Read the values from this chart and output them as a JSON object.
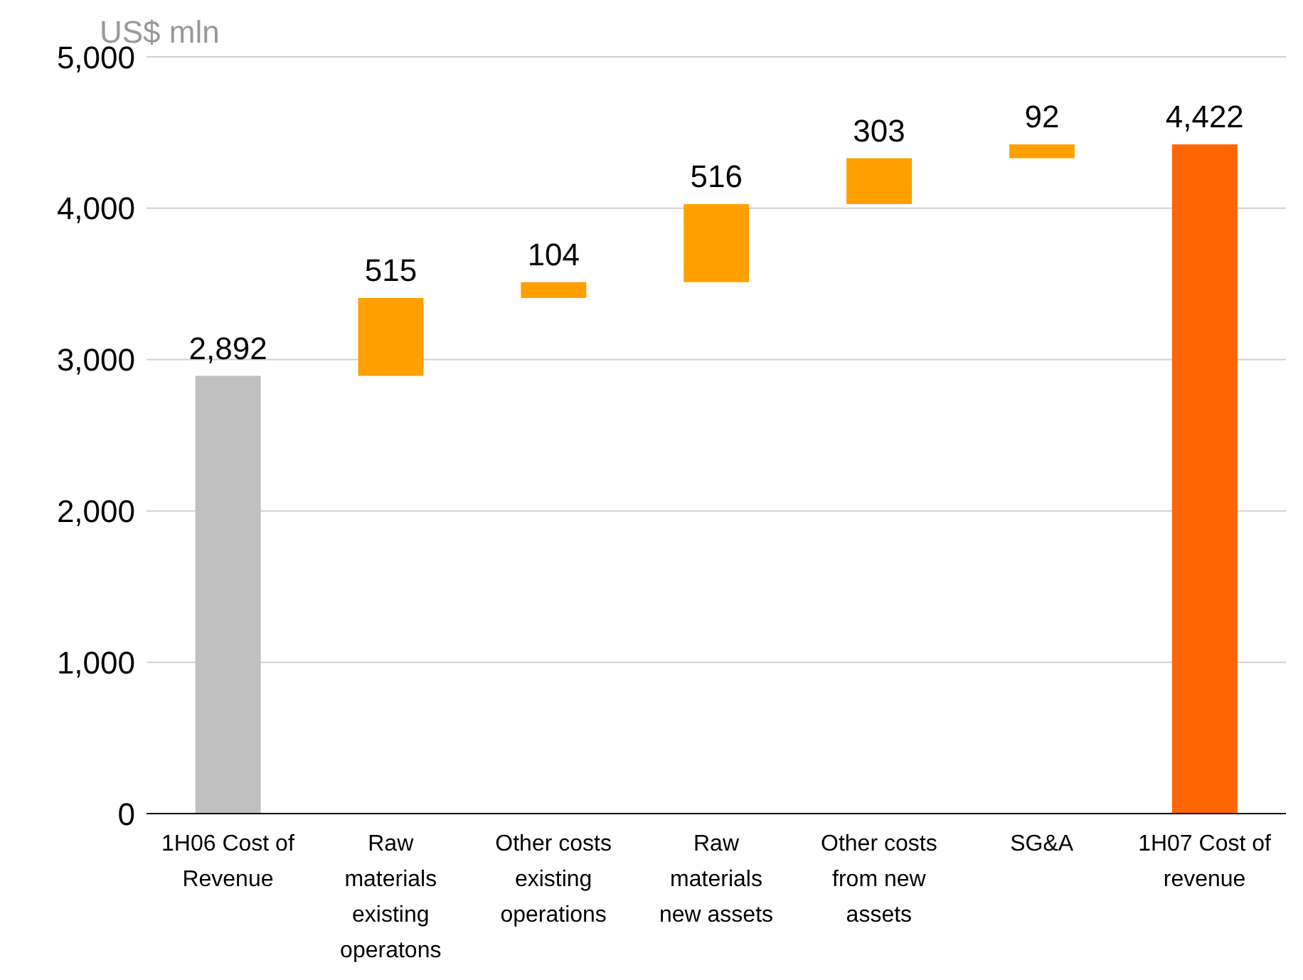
{
  "chart_data": {
    "type": "bar",
    "ylabel": "US$ mln",
    "categories": [
      "1H06 Cost of Revenue",
      "Raw materials existing operatons",
      "Other costs existing operations",
      "Raw materials new assets",
      "Other costs from new assets",
      "SG&A",
      "1H07 Cost of revenue"
    ],
    "values": [
      2892,
      515,
      104,
      516,
      303,
      92,
      4422
    ],
    "base": [
      0,
      2892,
      3407,
      3511,
      4027,
      4330,
      0
    ],
    "colors": [
      "#c0c0c0",
      "#ffa000",
      "#ffa000",
      "#ffa000",
      "#ffa000",
      "#ffa000",
      "#ff6600"
    ],
    "value_labels": [
      "2,892",
      "515",
      "104",
      "516",
      "303",
      "92",
      "4,422"
    ],
    "ylim": [
      0,
      5000
    ],
    "yticks": [
      0,
      {
        "value": 1000,
        "label": "1,000"
      },
      {
        "value": 2000,
        "label": "2,000"
      },
      {
        "value": 3000,
        "label": "3,000"
      },
      {
        "value": 4000,
        "label": "4,000"
      },
      {
        "value": 5000,
        "label": "5,000"
      }
    ],
    "grid": "y"
  }
}
